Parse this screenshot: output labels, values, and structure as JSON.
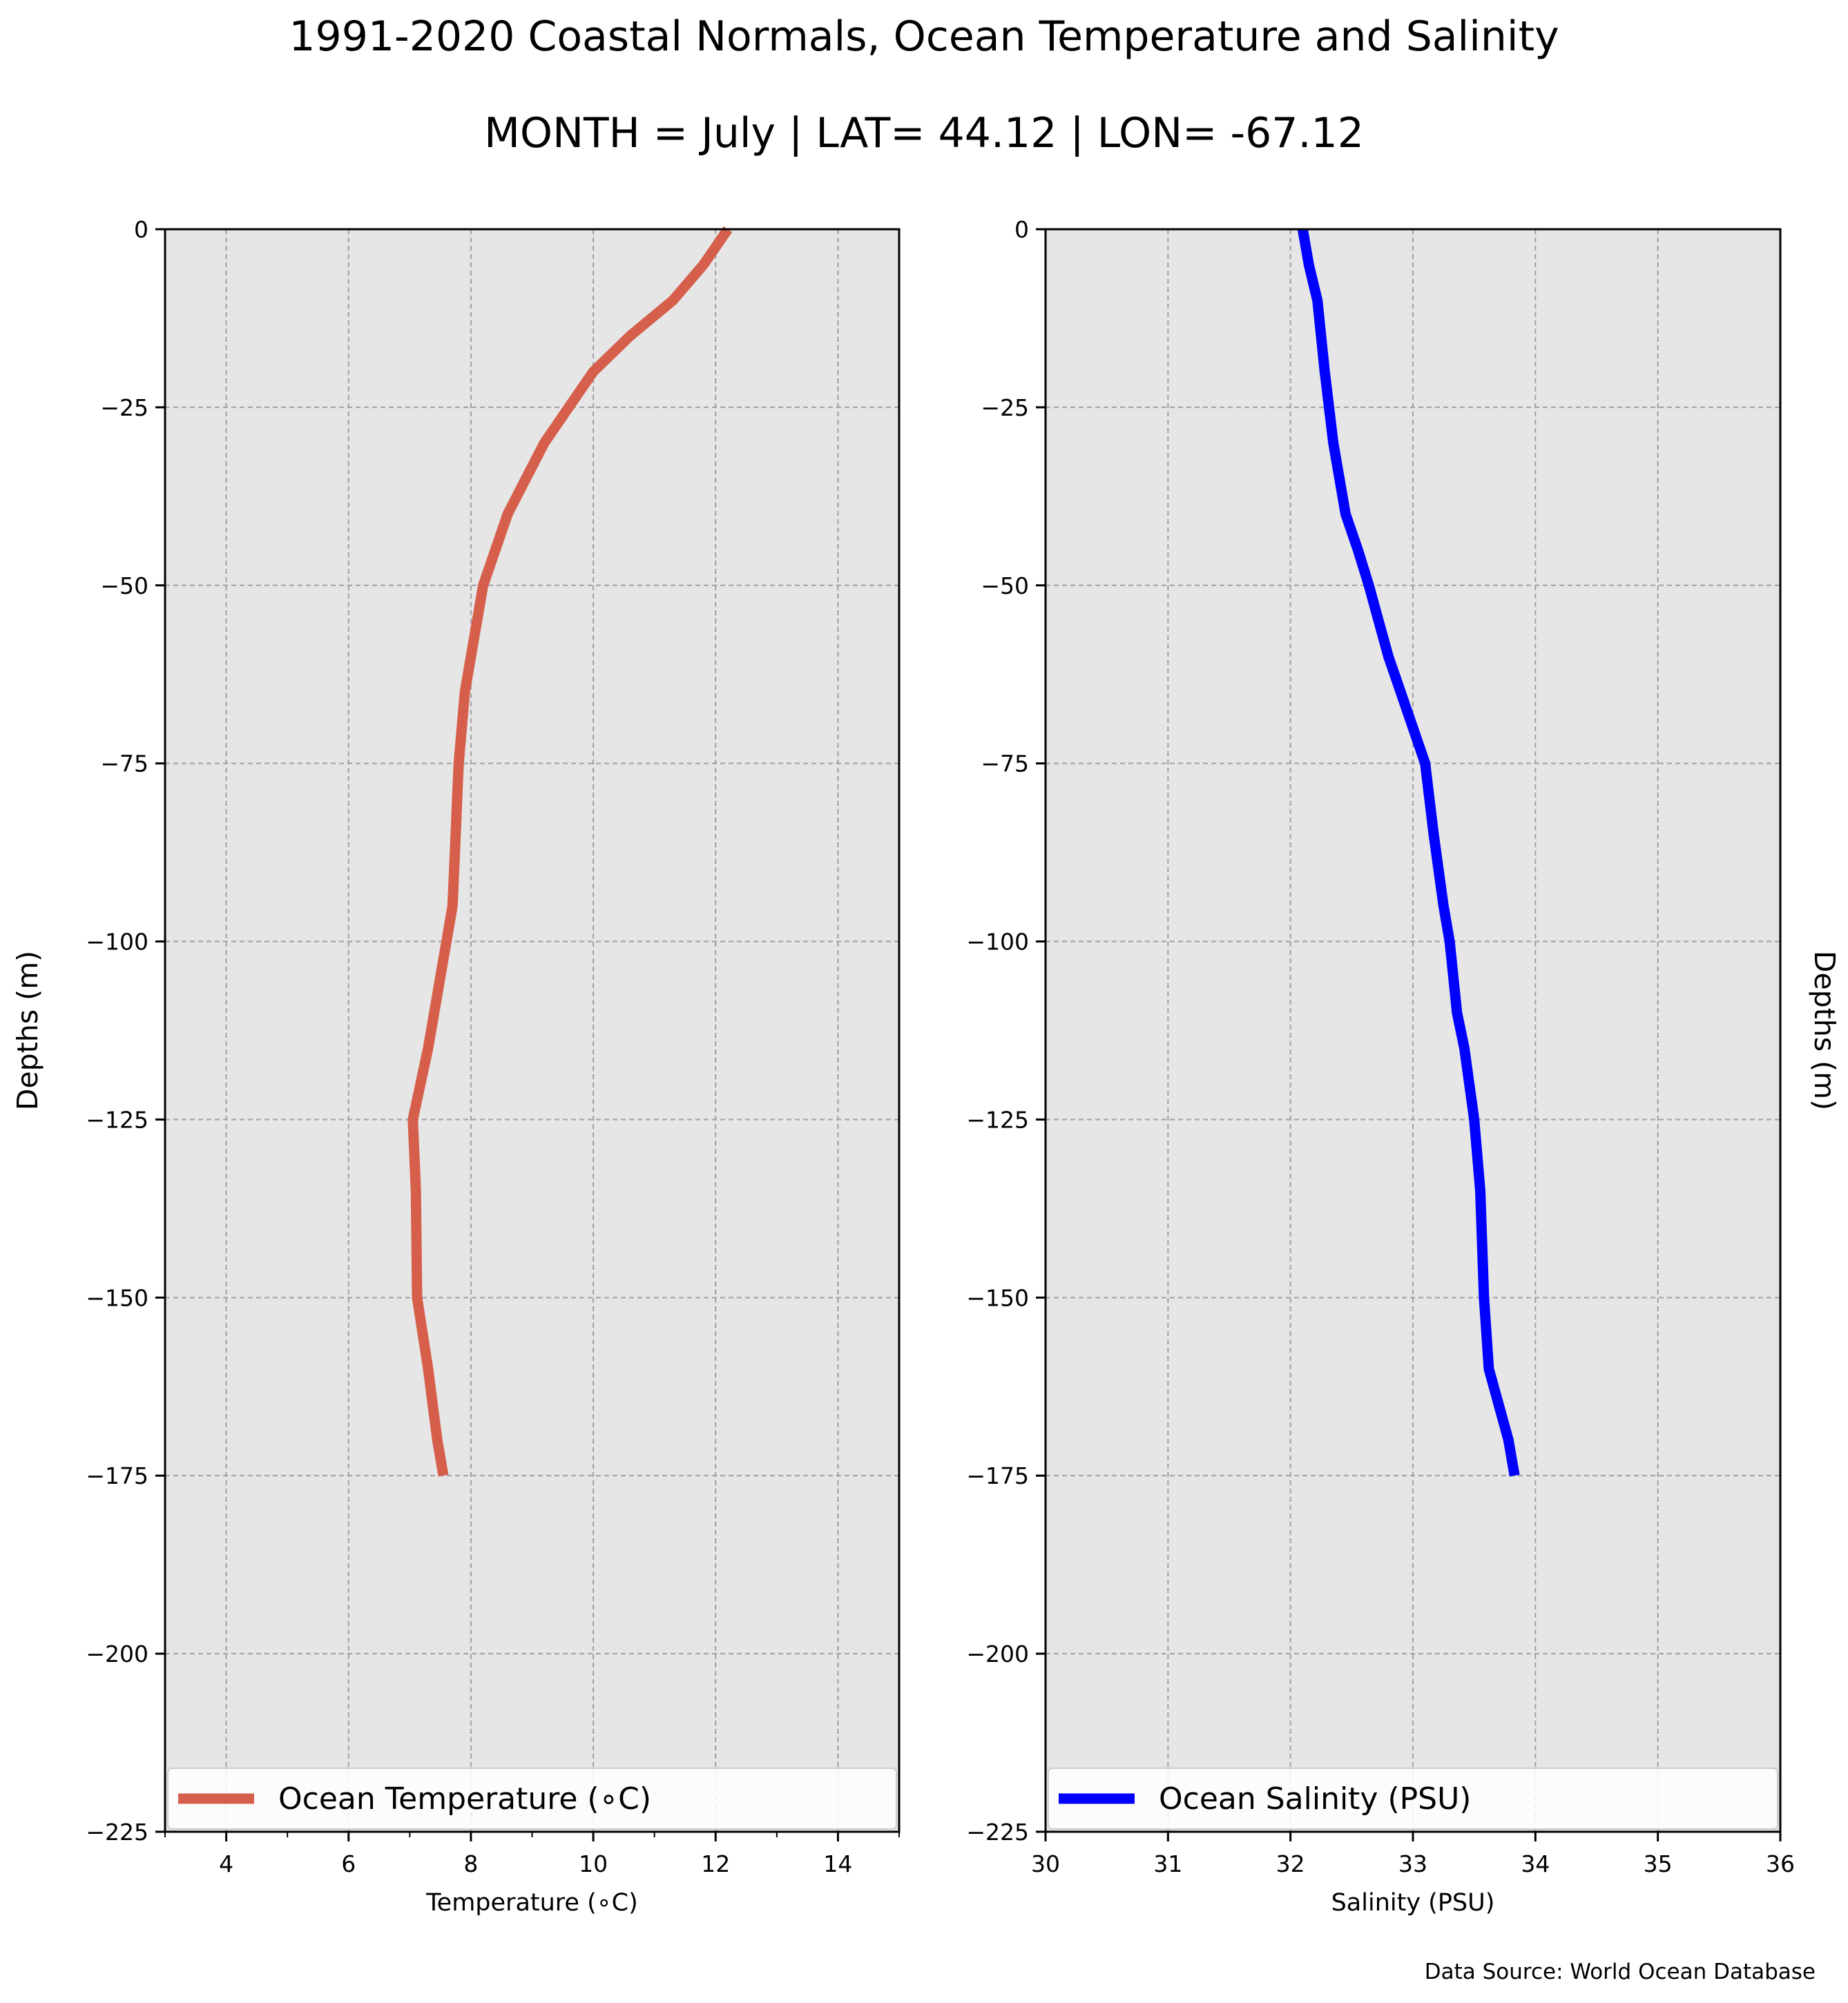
{
  "title": "1991-2020 Coastal Normals, Ocean Temperature and Salinity",
  "subtitle": "MONTH = July | LAT= 44.12 | LON= -67.12",
  "source_note": "Data Source: World Ocean Database",
  "colors": {
    "panel_bg": "#e6e6e6",
    "grid": "#a0a0a0",
    "temperature_line": "#d65f4c",
    "salinity_line": "#0000ff"
  },
  "chart_data": [
    {
      "type": "line",
      "xlabel": "Temperature ($^\\circ$C)",
      "xlabel_display": "Temperature (∘C)",
      "ylabel": "Depths (m)",
      "ylabel_side": "left",
      "xlim": [
        3,
        15
      ],
      "ylim": [
        -225,
        0
      ],
      "xticks": [
        4,
        6,
        8,
        10,
        12,
        14
      ],
      "xminor_ticks": [
        3,
        5,
        7,
        9,
        11,
        13,
        15
      ],
      "yticks": [
        0,
        -25,
        -50,
        -75,
        -100,
        -125,
        -150,
        -175,
        -200,
        -225
      ],
      "ytick_labels": [
        "0",
        "−25",
        "−50",
        "−75",
        "−100",
        "−125",
        "−150",
        "−175",
        "−200",
        "−225"
      ],
      "grid": true,
      "legend_position": "bottom",
      "series": [
        {
          "name": "Ocean Temperature (∘C)",
          "color": "#d65f4c",
          "x": [
            12.2,
            11.8,
            11.3,
            10.6,
            10.0,
            9.6,
            9.2,
            8.9,
            8.6,
            8.4,
            8.2,
            8.1,
            8.0,
            7.9,
            7.8,
            7.75,
            7.7,
            7.6,
            7.5,
            7.3,
            7.05,
            7.1,
            7.12,
            7.3,
            7.45,
            7.55
          ],
          "y": [
            0,
            -5,
            -10,
            -15,
            -20,
            -25,
            -30,
            -35,
            -40,
            -45,
            -50,
            -55,
            -60,
            -65,
            -75,
            -85,
            -95,
            -100,
            -105,
            -115,
            -125,
            -135,
            -150,
            -160,
            -170,
            -175
          ]
        }
      ]
    },
    {
      "type": "line",
      "xlabel": "Salinity (PSU)",
      "ylabel": "Depths (m)",
      "ylabel_side": "right",
      "xlim": [
        30,
        36
      ],
      "ylim": [
        -225,
        0
      ],
      "xticks": [
        30,
        31,
        32,
        33,
        34,
        35,
        36
      ],
      "yticks": [
        0,
        -25,
        -50,
        -75,
        -100,
        -125,
        -150,
        -175,
        -200,
        -225
      ],
      "ytick_labels": [
        "0",
        "−25",
        "−50",
        "−75",
        "−100",
        "−125",
        "−150",
        "−175",
        "−200",
        "−225"
      ],
      "grid": true,
      "legend_position": "bottom",
      "series": [
        {
          "name": "Ocean Salinity (PSU)",
          "color": "#0000ff",
          "x": [
            32.1,
            32.15,
            32.22,
            32.28,
            32.35,
            32.45,
            32.55,
            32.64,
            32.72,
            32.8,
            32.9,
            33.0,
            33.1,
            33.17,
            33.25,
            33.3,
            33.36,
            33.42,
            33.5,
            33.55,
            33.58,
            33.62,
            33.7,
            33.78,
            33.83
          ],
          "y": [
            0,
            -5,
            -10,
            -20,
            -30,
            -40,
            -45,
            -50,
            -55,
            -60,
            -65,
            -70,
            -75,
            -85,
            -95,
            -100,
            -110,
            -115,
            -125,
            -135,
            -150,
            -160,
            -165,
            -170,
            -175
          ]
        }
      ]
    }
  ]
}
